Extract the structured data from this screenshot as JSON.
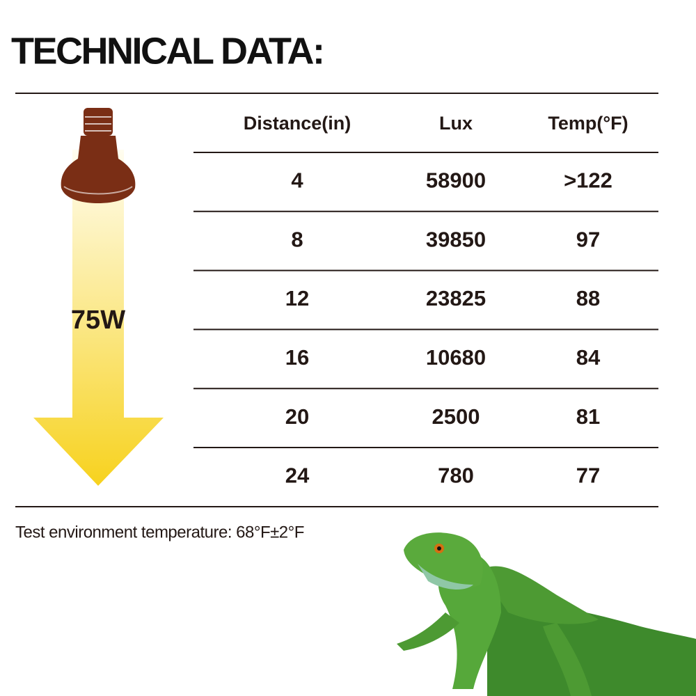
{
  "header": {
    "title": "TECHNICAL DATA:"
  },
  "lamp": {
    "wattage": "75W"
  },
  "table": {
    "columns": [
      "Distance(in)",
      "Lux",
      "Temp(°F)"
    ],
    "rows": [
      [
        "4",
        "58900",
        ">122"
      ],
      [
        "8",
        "39850",
        "97"
      ],
      [
        "12",
        "23825",
        "88"
      ],
      [
        "16",
        "10680",
        "84"
      ],
      [
        "20",
        "2500",
        "81"
      ],
      [
        "24",
        "780",
        "77"
      ]
    ]
  },
  "footnote": "Test environment temperature: 68°F±2°F"
}
